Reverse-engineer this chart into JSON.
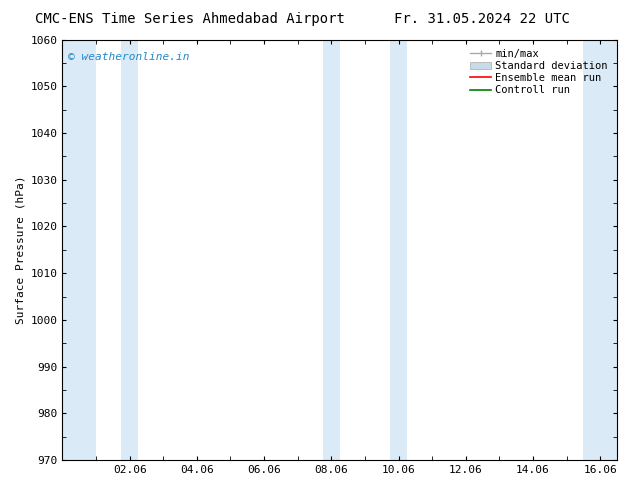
{
  "title_left": "CMC-ENS Time Series Ahmedabad Airport",
  "title_right": "Fr. 31.05.2024 22 UTC",
  "ylabel": "Surface Pressure (hPa)",
  "ylim": [
    970,
    1060
  ],
  "yticks": [
    970,
    980,
    990,
    1000,
    1010,
    1020,
    1030,
    1040,
    1050,
    1060
  ],
  "xlim": [
    0,
    16.5
  ],
  "xtick_positions": [
    2,
    4,
    6,
    8,
    10,
    12,
    14,
    16
  ],
  "xtick_labels": [
    "02.06",
    "04.06",
    "06.06",
    "08.06",
    "10.06",
    "12.06",
    "14.06",
    "16.06"
  ],
  "shaded_bands": [
    {
      "x_start": 0.0,
      "x_end": 1.0
    },
    {
      "x_start": 1.75,
      "x_end": 2.25
    },
    {
      "x_start": 7.75,
      "x_end": 8.25
    },
    {
      "x_start": 9.75,
      "x_end": 10.25
    },
    {
      "x_start": 15.5,
      "x_end": 16.5
    }
  ],
  "band_color": "#daeaf7",
  "watermark_text": "© weatheronline.in",
  "watermark_color": "#2288cc",
  "bg_color": "white",
  "font_size_title": 10,
  "font_size_axis": 8,
  "font_size_legend": 7.5,
  "font_size_watermark": 8
}
